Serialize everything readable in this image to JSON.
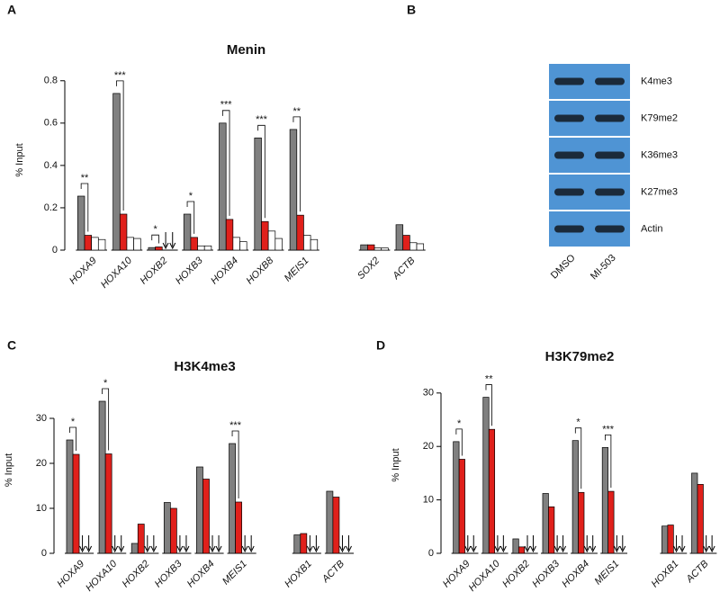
{
  "chart_data": [
    {
      "type": "bar",
      "panel": "A",
      "title": "Menin",
      "y_label": "% Input",
      "categories": [
        "HOXA9",
        "HOXA10",
        "HOXB2",
        "HOXB3",
        "HOXB4",
        "HOXB8",
        "MEIS1",
        null,
        "SOX2",
        "ACTB"
      ],
      "series": [
        {
          "color": "#808080",
          "values": [
            0.255,
            0.74,
            0.012,
            0.17,
            0.6,
            0.53,
            0.57,
            null,
            0.025,
            0.12
          ]
        },
        {
          "color": "#e0201b",
          "values": [
            0.07,
            0.17,
            0.015,
            0.06,
            0.145,
            0.135,
            0.165,
            null,
            0.025,
            0.07
          ]
        },
        {
          "color": "#ffffff",
          "values": [
            0.06,
            0.06,
            null,
            0.02,
            0.06,
            0.09,
            0.07,
            null,
            0.01,
            0.035
          ]
        },
        {
          "color": "#ffffff",
          "values": [
            0.05,
            0.055,
            null,
            0.02,
            0.04,
            0.055,
            0.05,
            null,
            0.01,
            0.03
          ]
        }
      ],
      "significance": [
        "**",
        "***",
        "*",
        "*",
        "***",
        "***",
        "**",
        null,
        null,
        null
      ],
      "ylim": [
        0,
        0.85
      ],
      "yticks": [
        0,
        0.2,
        0.4,
        0.6,
        0.8
      ]
    },
    {
      "type": "blot",
      "panel": "B",
      "lanes": [
        "DMSO",
        "MI-503"
      ],
      "bands": [
        "K4me3",
        "K79me2",
        "K36me3",
        "K27me3",
        "Actin"
      ]
    },
    {
      "type": "bar",
      "panel": "C",
      "title": "H3K4me3",
      "y_label": "% Input",
      "categories": [
        "HOXA9",
        "HOXA10",
        "HOXB2",
        "HOXB3",
        "HOXB4",
        "MEIS1",
        null,
        "HOXB1",
        "ACTB"
      ],
      "series": [
        {
          "color": "#808080",
          "values": [
            25.2,
            33.8,
            2.2,
            11.3,
            19.2,
            24.4,
            null,
            4.1,
            13.8
          ]
        },
        {
          "color": "#e0201b",
          "values": [
            22,
            22.1,
            6.5,
            10,
            16.5,
            11.4,
            null,
            4.4,
            12.5
          ]
        },
        {
          "color": "#ffffff",
          "values": [
            null,
            null,
            null,
            null,
            null,
            null,
            null,
            null,
            null
          ]
        },
        {
          "color": "#ffffff",
          "values": [
            null,
            null,
            null,
            null,
            null,
            null,
            null,
            null,
            null
          ]
        }
      ],
      "significance": [
        "*",
        "*",
        null,
        null,
        null,
        "***",
        null,
        null,
        null
      ],
      "ylim": [
        0,
        37
      ],
      "yticks": [
        0,
        10,
        20,
        30
      ]
    },
    {
      "type": "bar",
      "panel": "D",
      "title": "H3K79me2",
      "y_label": "% Input",
      "categories": [
        "HOXA9",
        "HOXA10",
        "HOXB2",
        "HOXB3",
        "HOXB4",
        "MEIS1",
        null,
        "HOXB1",
        "ACTB"
      ],
      "series": [
        {
          "color": "#808080",
          "values": [
            20.9,
            29.2,
            2.7,
            11.2,
            21.1,
            19.8,
            null,
            5.1,
            15
          ]
        },
        {
          "color": "#e0201b",
          "values": [
            17.6,
            23.2,
            1.2,
            8.7,
            11.4,
            11.6,
            null,
            5.3,
            12.9
          ]
        },
        {
          "color": "#ffffff",
          "values": [
            null,
            null,
            null,
            null,
            null,
            null,
            null,
            null,
            null
          ]
        },
        {
          "color": "#ffffff",
          "values": [
            null,
            null,
            null,
            null,
            null,
            null,
            null,
            null,
            null
          ]
        }
      ],
      "significance": [
        "*",
        "**",
        null,
        null,
        "*",
        "***",
        null,
        null,
        null
      ],
      "ylim": [
        0,
        33
      ],
      "yticks": [
        0,
        10,
        20,
        30
      ]
    }
  ]
}
